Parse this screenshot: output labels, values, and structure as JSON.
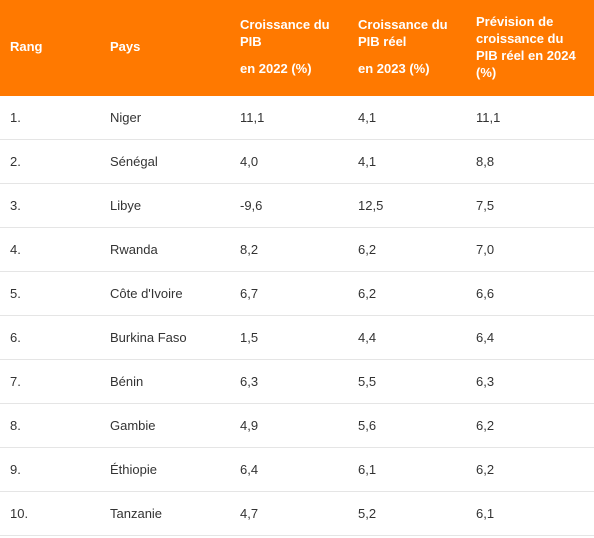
{
  "table": {
    "header_bg": "#ff7900",
    "header_fg": "#ffffff",
    "row_border": "#e5e5e5",
    "columns": [
      {
        "key": "rank",
        "label_line1": "Rang",
        "label_line2": ""
      },
      {
        "key": "pays",
        "label_line1": "Pays",
        "label_line2": ""
      },
      {
        "key": "g2022",
        "label_line1": "Croissance du PIB",
        "label_line2": "en 2022 (%)"
      },
      {
        "key": "g2023",
        "label_line1": "Croissance du PIB réel",
        "label_line2": "en 2023 (%)"
      },
      {
        "key": "g2024",
        "label_line1": "Prévision de croissance du PIB réel en 2024 (%)",
        "label_line2": ""
      }
    ],
    "rows": [
      {
        "rank": "1.",
        "pays": "Niger",
        "g2022": "11,1",
        "g2023": "4,1",
        "g2024": "11,1"
      },
      {
        "rank": "2.",
        "pays": "Sénégal",
        "g2022": "4,0",
        "g2023": "4,1",
        "g2024": "8,8"
      },
      {
        "rank": "3.",
        "pays": "Libye",
        "g2022": "-9,6",
        "g2023": "12,5",
        "g2024": "7,5"
      },
      {
        "rank": "4.",
        "pays": "Rwanda",
        "g2022": "8,2",
        "g2023": "6,2",
        "g2024": "7,0"
      },
      {
        "rank": "5.",
        "pays": "Côte d'Ivoire",
        "g2022": "6,7",
        "g2023": "6,2",
        "g2024": "6,6"
      },
      {
        "rank": "6.",
        "pays": "Burkina Faso",
        "g2022": "1,5",
        "g2023": "4,4",
        "g2024": "6,4"
      },
      {
        "rank": "7.",
        "pays": "Bénin",
        "g2022": "6,3",
        "g2023": "5,5",
        "g2024": "6,3"
      },
      {
        "rank": "8.",
        "pays": "Gambie",
        "g2022": "4,9",
        "g2023": "5,6",
        "g2024": "6,2"
      },
      {
        "rank": "9.",
        "pays": "Éthiopie",
        "g2022": "6,4",
        "g2023": "6,1",
        "g2024": "6,2"
      },
      {
        "rank": "10.",
        "pays": "Tanzanie",
        "g2022": "4,7",
        "g2023": "5,2",
        "g2024": "6,1"
      }
    ]
  }
}
